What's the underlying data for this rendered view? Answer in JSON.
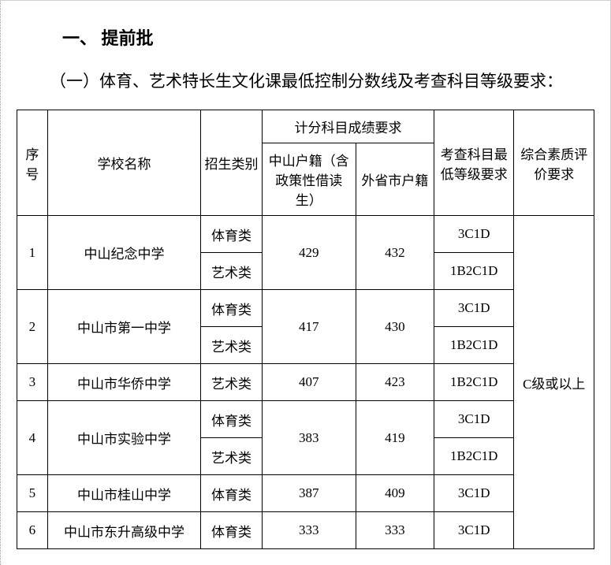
{
  "heading1": "一、 提前批",
  "paragraph": "（一）体育、艺术特长生文化课最低控制分数线及考查科目等级要求：",
  "table": {
    "headers": {
      "seq": "序号",
      "school": "学校名称",
      "category": "招生类别",
      "scoreGroup": "计分科目成绩要求",
      "score1": "中山户籍（含政策性借读生）",
      "score2": "外省市户籍",
      "grade": "考查科目最低等级要求",
      "quality": "综合素质评价要求"
    },
    "quality_value": "C级或以上",
    "rows": [
      {
        "seq": "1",
        "school": "中山纪念中学",
        "cats": [
          {
            "cat": "体育类",
            "grade": "3C1D"
          },
          {
            "cat": "艺术类",
            "grade": "1B2C1D"
          }
        ],
        "score1": "429",
        "score2": "432"
      },
      {
        "seq": "2",
        "school": "中山市第一中学",
        "cats": [
          {
            "cat": "体育类",
            "grade": "3C1D"
          },
          {
            "cat": "艺术类",
            "grade": "1B2C1D"
          }
        ],
        "score1": "417",
        "score2": "430"
      },
      {
        "seq": "3",
        "school": "中山市华侨中学",
        "cats": [
          {
            "cat": "艺术类",
            "grade": "1B2C1D"
          }
        ],
        "score1": "407",
        "score2": "423"
      },
      {
        "seq": "4",
        "school": "中山市实验中学",
        "cats": [
          {
            "cat": "体育类",
            "grade": "3C1D"
          },
          {
            "cat": "艺术类",
            "grade": "1B2C1D"
          }
        ],
        "score1": "383",
        "score2": "419"
      },
      {
        "seq": "5",
        "school": "中山市桂山中学",
        "cats": [
          {
            "cat": "体育类",
            "grade": "3C1D"
          }
        ],
        "score1": "387",
        "score2": "409"
      },
      {
        "seq": "6",
        "school": "中山市东升高级中学",
        "cats": [
          {
            "cat": "体育类",
            "grade": "3C1D"
          }
        ],
        "score1": "333",
        "score2": "333"
      }
    ]
  }
}
